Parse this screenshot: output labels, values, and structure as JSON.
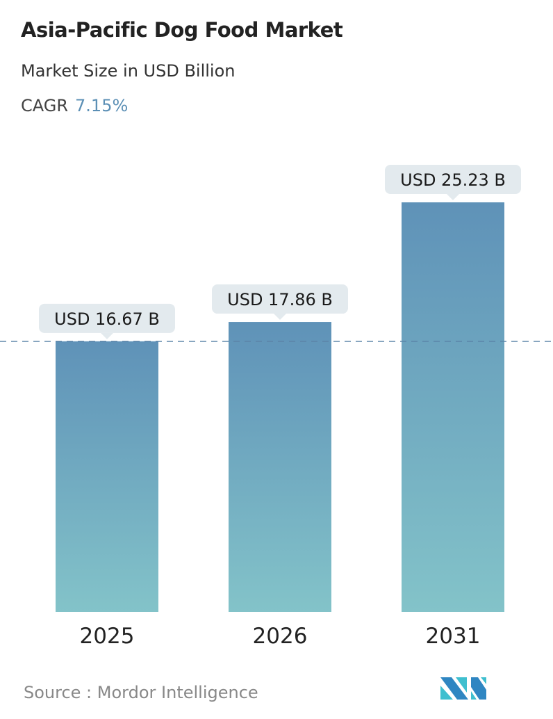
{
  "header": {
    "title": "Asia-Pacific Dog Food Market",
    "subtitle": "Market Size in USD Billion",
    "cagr_label": "CAGR",
    "cagr_value": "7.15%"
  },
  "chart_data": {
    "type": "bar",
    "categories": [
      "2025",
      "2026",
      "2031"
    ],
    "values": [
      16.67,
      17.86,
      25.23
    ],
    "data_labels": [
      "USD 16.67 B",
      "USD 17.86 B",
      "USD 25.23 B"
    ],
    "reference_line": 16.67,
    "ylim": [
      0,
      25.23
    ],
    "grid": false,
    "colors": {
      "bar_top": "#5f92b8",
      "bar_bottom": "#83c3c9",
      "label_bg": "#e3eaee",
      "ref_line": "#5b84a8"
    }
  },
  "footer": {
    "source": "Source :  Mordor Intelligence",
    "logo_text": "MI"
  }
}
